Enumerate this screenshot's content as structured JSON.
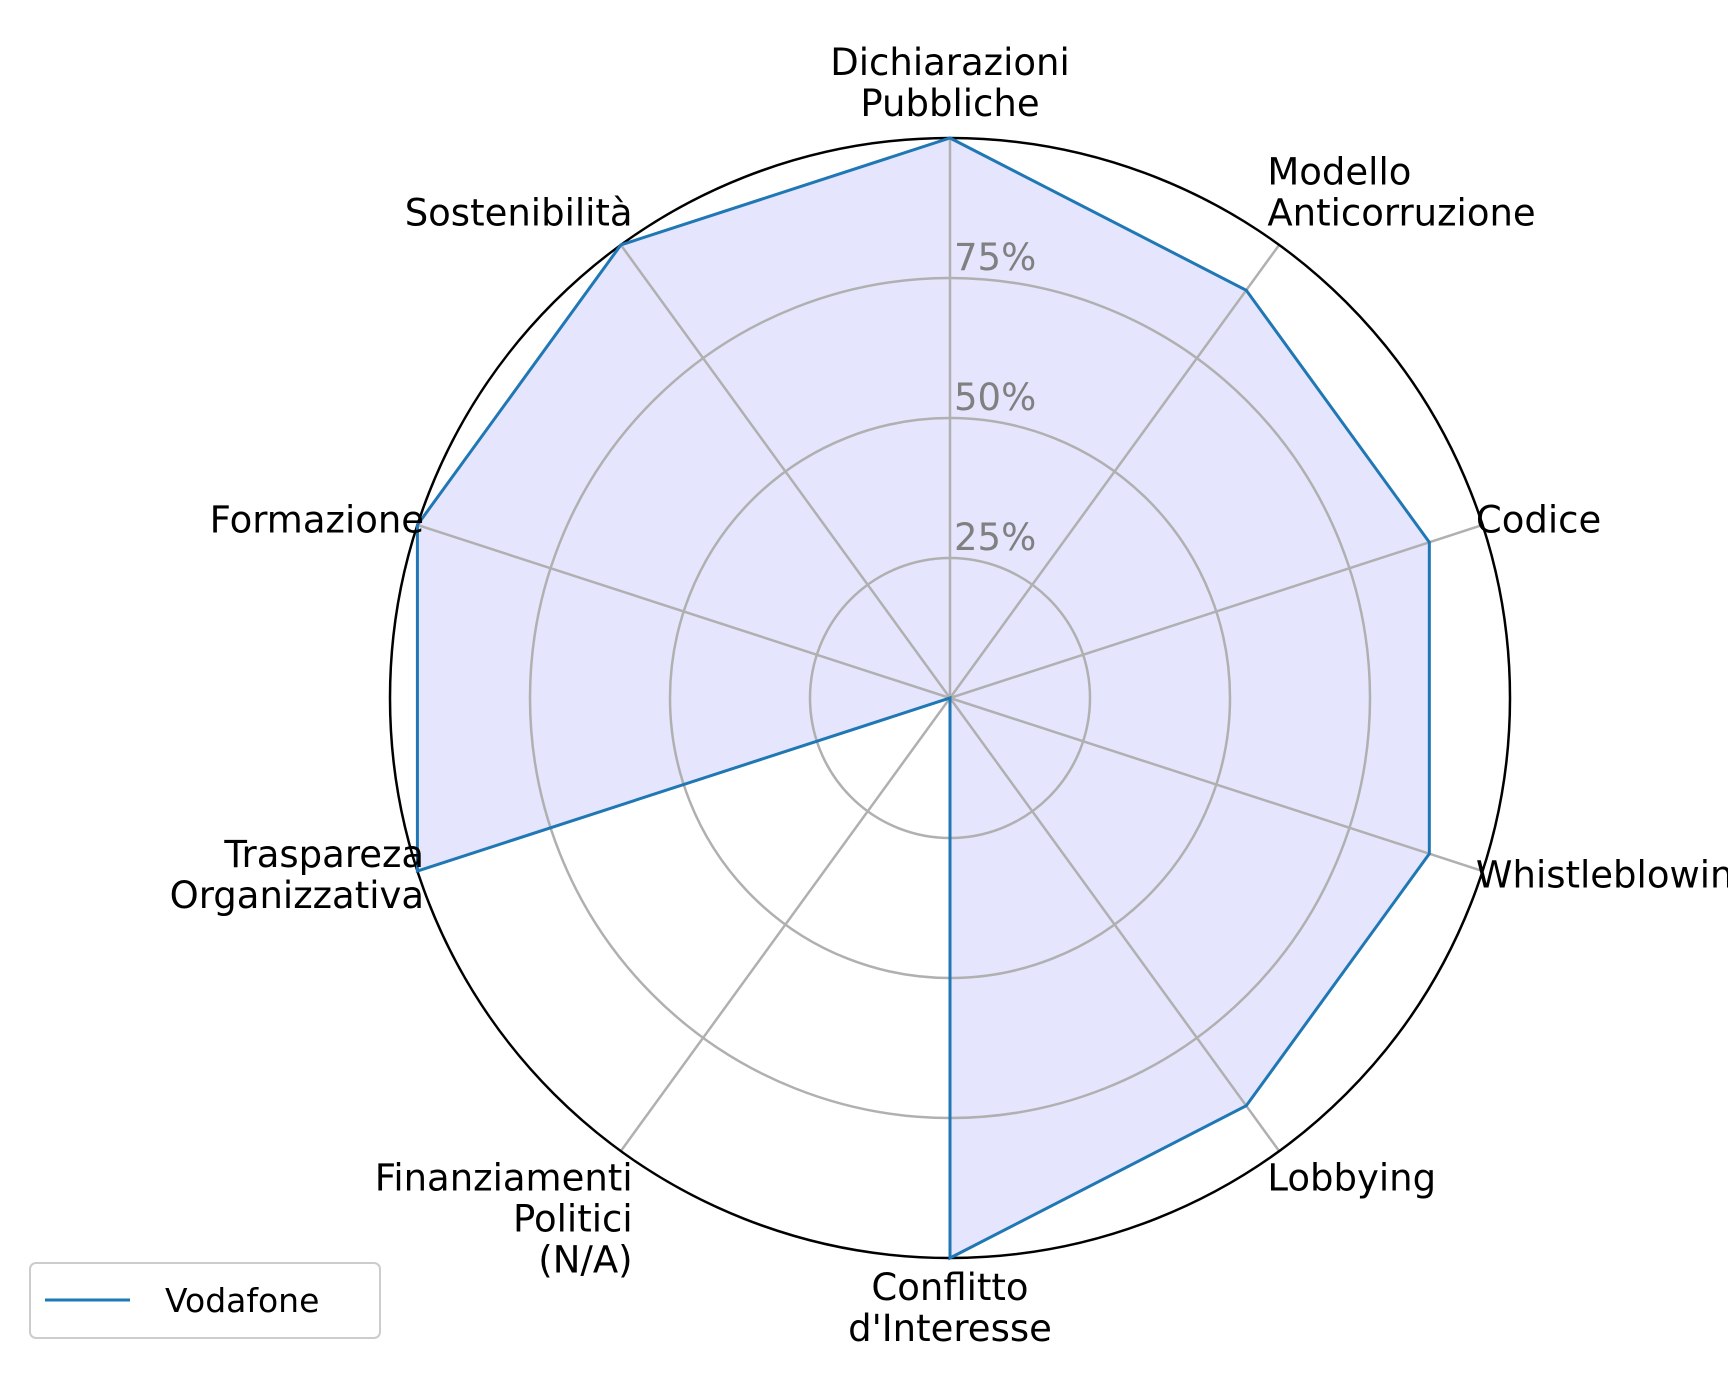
{
  "chart_data": {
    "type": "radar",
    "categories": [
      [
        "Dichiarazioni",
        "Pubbliche"
      ],
      [
        "Modello",
        "Anticorruzione"
      ],
      [
        "Codice"
      ],
      [
        "Whistleblowing"
      ],
      [
        "Lobbying"
      ],
      [
        "Conflitto",
        "d'Interesse"
      ],
      [
        "Finanziamenti",
        "Politici",
        "(N/A)"
      ],
      [
        "Traspareza",
        "Organizzativa"
      ],
      [
        "Formazione"
      ],
      [
        "Sostenibilità"
      ]
    ],
    "series": [
      {
        "name": "Vodafone",
        "values": [
          100,
          90,
          90,
          90,
          90,
          100,
          0,
          100,
          100,
          100
        ],
        "line_color": "#1f77b4",
        "fill_color": "#e5e5fe"
      }
    ],
    "radial_ticks": [
      {
        "value": 25,
        "label": "25%"
      },
      {
        "value": 50,
        "label": "50%"
      },
      {
        "value": 75,
        "label": "75%"
      },
      {
        "value": 100,
        "label": ""
      }
    ],
    "rlim": [
      0,
      100
    ],
    "grid": true,
    "legend_position": "bottom-left",
    "colors": {
      "grid": "#b0b0b0",
      "outer": "#000000",
      "tick_text": "#808080"
    }
  }
}
